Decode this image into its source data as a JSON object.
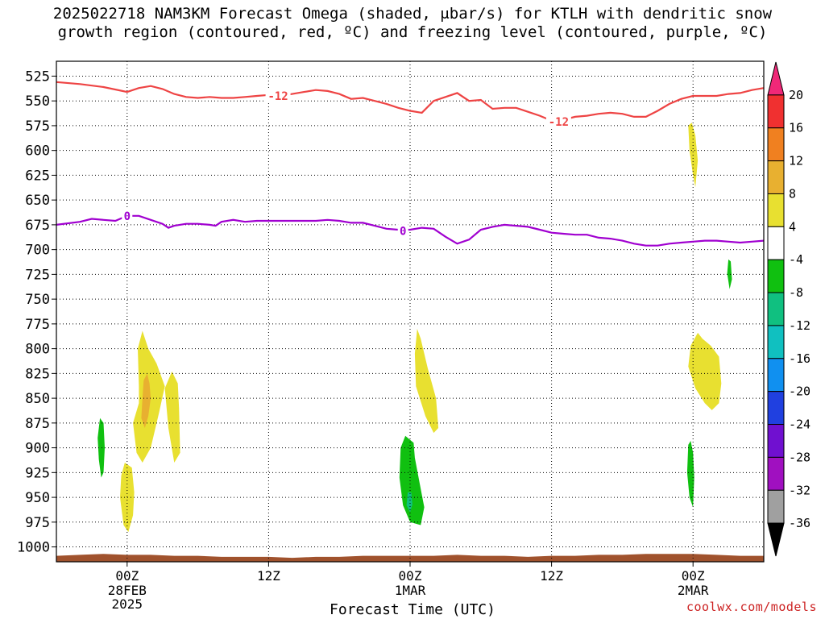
{
  "title": {
    "line1": "2025022718 NAM3KM Forecast Omega (shaded, μbar/s) for KTLH with dendritic snow",
    "line2": "growth region (contoured, red, ºC) and freezing level (contoured, purple, ºC)"
  },
  "credit": "coolwx.com/models",
  "colors": {
    "dgz_contour": "#ee4444",
    "freezing_contour": "#a000d0",
    "ground": "#a0522d",
    "grid": "#000000"
  },
  "chart_data": {
    "type": "heatmap",
    "xlabel": "Forecast Time (UTC)",
    "ylabel": "",
    "y_axis": {
      "scale": "pressure (hPa), inverted",
      "range": [
        1015,
        510
      ],
      "ticks": [
        525,
        550,
        575,
        600,
        625,
        650,
        675,
        700,
        725,
        750,
        775,
        800,
        825,
        850,
        875,
        900,
        925,
        950,
        975,
        1000
      ]
    },
    "x_axis": {
      "range_hours": [
        -6,
        54
      ],
      "ticks": [
        {
          "hour": 0,
          "label": "00Z",
          "sub1": "28FEB",
          "sub2": "2025"
        },
        {
          "hour": 12,
          "label": "12Z",
          "sub1": "",
          "sub2": ""
        },
        {
          "hour": 24,
          "label": "00Z",
          "sub1": "1MAR",
          "sub2": ""
        },
        {
          "hour": 36,
          "label": "12Z",
          "sub1": "",
          "sub2": ""
        },
        {
          "hour": 48,
          "label": "00Z",
          "sub1": "2MAR",
          "sub2": ""
        }
      ]
    },
    "grid": "dotted",
    "legend": {
      "placement": "right",
      "labels": [
        "20",
        "16",
        "12",
        "8",
        "4",
        "-4",
        "-8",
        "-12",
        "-16",
        "-20",
        "-24",
        "-28",
        "-32",
        "-36"
      ],
      "colors": [
        "#f02878",
        "#f03030",
        "#f08020",
        "#e8b030",
        "#e8e030",
        "#ffffff",
        "#10c010",
        "#10c080",
        "#10c0c0",
        "#1090f0",
        "#2040e0",
        "#7010d0",
        "#a010c0",
        "#a0a0a0",
        "#000000"
      ]
    },
    "contours": [
      {
        "label": "-12",
        "color": "#ee4444",
        "label_positions": [
          [
            12.8,
            545
          ],
          [
            36.6,
            571
          ]
        ],
        "points": [
          [
            -6,
            531
          ],
          [
            -4,
            533
          ],
          [
            -2,
            536
          ],
          [
            0,
            541
          ],
          [
            1,
            537
          ],
          [
            2,
            535
          ],
          [
            3,
            538
          ],
          [
            4,
            543
          ],
          [
            5,
            546
          ],
          [
            6,
            547
          ],
          [
            7,
            546
          ],
          [
            8,
            547
          ],
          [
            9,
            547
          ],
          [
            10,
            546
          ],
          [
            11,
            545
          ],
          [
            12,
            544
          ],
          [
            13,
            545
          ],
          [
            14,
            543
          ],
          [
            15,
            541
          ],
          [
            16,
            539
          ],
          [
            17,
            540
          ],
          [
            18,
            543
          ],
          [
            19,
            548
          ],
          [
            20,
            547
          ],
          [
            21,
            550
          ],
          [
            22,
            553
          ],
          [
            23,
            557
          ],
          [
            24,
            560
          ],
          [
            25,
            562
          ],
          [
            26,
            550
          ],
          [
            27,
            546
          ],
          [
            28,
            542
          ],
          [
            29,
            550
          ],
          [
            30,
            549
          ],
          [
            31,
            558
          ],
          [
            32,
            557
          ],
          [
            33,
            557
          ],
          [
            34,
            561
          ],
          [
            35,
            565
          ],
          [
            36,
            570
          ],
          [
            37,
            569
          ],
          [
            38,
            566
          ],
          [
            39,
            565
          ],
          [
            40,
            563
          ],
          [
            41,
            562
          ],
          [
            42,
            563
          ],
          [
            43,
            566
          ],
          [
            44,
            566
          ],
          [
            45,
            560
          ],
          [
            46,
            553
          ],
          [
            47,
            548
          ],
          [
            48,
            545
          ],
          [
            49,
            545
          ],
          [
            50,
            545
          ],
          [
            51,
            543
          ],
          [
            52,
            542
          ],
          [
            53,
            539
          ],
          [
            54,
            537
          ]
        ]
      },
      {
        "label": "0",
        "color": "#a000d0",
        "label_positions": [
          [
            0,
            666
          ],
          [
            23.4,
            681
          ]
        ],
        "points": [
          [
            -6,
            675
          ],
          [
            -4,
            672
          ],
          [
            -3,
            669
          ],
          [
            -2,
            670
          ],
          [
            -1,
            671
          ],
          [
            0,
            666
          ],
          [
            1,
            666
          ],
          [
            2,
            670
          ],
          [
            3,
            674
          ],
          [
            3.5,
            678
          ],
          [
            4,
            676
          ],
          [
            5,
            674
          ],
          [
            6,
            674
          ],
          [
            7,
            675
          ],
          [
            7.5,
            676
          ],
          [
            8,
            672
          ],
          [
            9,
            670
          ],
          [
            10,
            672
          ],
          [
            11,
            671
          ],
          [
            12,
            671
          ],
          [
            14,
            671
          ],
          [
            16,
            671
          ],
          [
            17,
            670
          ],
          [
            18,
            671
          ],
          [
            19,
            673
          ],
          [
            20,
            673
          ],
          [
            21,
            676
          ],
          [
            22,
            679
          ],
          [
            23,
            680
          ],
          [
            24,
            680
          ],
          [
            25,
            678
          ],
          [
            26,
            679
          ],
          [
            27,
            687
          ],
          [
            28,
            694
          ],
          [
            29,
            690
          ],
          [
            30,
            680
          ],
          [
            31,
            677
          ],
          [
            32,
            675
          ],
          [
            33,
            676
          ],
          [
            34,
            677
          ],
          [
            35,
            680
          ],
          [
            36,
            683
          ],
          [
            37,
            684
          ],
          [
            38,
            685
          ],
          [
            39,
            685
          ],
          [
            40,
            688
          ],
          [
            41,
            689
          ],
          [
            42,
            691
          ],
          [
            43,
            694
          ],
          [
            44,
            696
          ],
          [
            45,
            696
          ],
          [
            46,
            694
          ],
          [
            47,
            693
          ],
          [
            48,
            692
          ],
          [
            49,
            691
          ],
          [
            50,
            691
          ],
          [
            51,
            692
          ],
          [
            52,
            693
          ],
          [
            53,
            692
          ],
          [
            54,
            691
          ]
        ]
      }
    ],
    "shaded_regions": [
      {
        "level": "4 to 8",
        "color": "#e8e030",
        "points": [
          [
            1.0,
            838
          ],
          [
            1.0,
            855
          ],
          [
            0.5,
            875
          ],
          [
            0.8,
            905
          ],
          [
            1.3,
            915
          ],
          [
            2.0,
            900
          ],
          [
            2.7,
            865
          ],
          [
            3.2,
            838
          ],
          [
            2.5,
            815
          ],
          [
            1.8,
            800
          ],
          [
            1.3,
            782
          ],
          [
            0.9,
            800
          ]
        ]
      },
      {
        "level": "8 to 12",
        "color": "#e8b030",
        "points": [
          [
            1.4,
            832
          ],
          [
            1.3,
            850
          ],
          [
            1.2,
            870
          ],
          [
            1.5,
            880
          ],
          [
            1.8,
            868
          ],
          [
            2.0,
            850
          ],
          [
            1.9,
            835
          ],
          [
            1.7,
            825
          ]
        ]
      },
      {
        "level": "4 to 8",
        "color": "#e8e030",
        "points": [
          [
            3.2,
            840
          ],
          [
            3.5,
            880
          ],
          [
            4.0,
            915
          ],
          [
            4.5,
            905
          ],
          [
            4.4,
            860
          ],
          [
            4.3,
            835
          ],
          [
            3.8,
            823
          ]
        ]
      },
      {
        "level": "4 to 8",
        "color": "#e8e030",
        "points": [
          [
            -0.5,
            928
          ],
          [
            -0.6,
            950
          ],
          [
            -0.3,
            978
          ],
          [
            0.1,
            985
          ],
          [
            0.5,
            968
          ],
          [
            0.6,
            945
          ],
          [
            0.4,
            920
          ],
          [
            -0.2,
            915
          ]
        ]
      },
      {
        "level": "-8 to -4",
        "color": "#10c010",
        "points": [
          [
            -2.5,
            890
          ],
          [
            -2.4,
            912
          ],
          [
            -2.2,
            930
          ],
          [
            -2.0,
            925
          ],
          [
            -1.9,
            900
          ],
          [
            -2.0,
            875
          ],
          [
            -2.3,
            870
          ]
        ]
      },
      {
        "level": "4 to 8",
        "color": "#e8e030",
        "points": [
          [
            24.4,
            805
          ],
          [
            24.5,
            838
          ],
          [
            25.3,
            868
          ],
          [
            26.0,
            885
          ],
          [
            26.4,
            880
          ],
          [
            26.2,
            850
          ],
          [
            25.5,
            820
          ],
          [
            24.9,
            790
          ],
          [
            24.6,
            780
          ]
        ]
      },
      {
        "level": "-8 to -4",
        "color": "#10c010",
        "points": [
          [
            23.2,
            900
          ],
          [
            23.1,
            930
          ],
          [
            23.4,
            958
          ],
          [
            24.0,
            975
          ],
          [
            24.9,
            978
          ],
          [
            25.2,
            960
          ],
          [
            24.8,
            935
          ],
          [
            24.4,
            910
          ],
          [
            24.3,
            895
          ],
          [
            23.6,
            888
          ]
        ]
      },
      {
        "level": "-12 to -8",
        "color": "#10c080",
        "points": [
          [
            23.8,
            945
          ],
          [
            23.7,
            958
          ],
          [
            24.0,
            965
          ],
          [
            24.2,
            957
          ],
          [
            24.1,
            945
          ]
        ]
      },
      {
        "level": "4 to 8",
        "color": "#e8e030",
        "points": [
          [
            47.8,
            797
          ],
          [
            47.6,
            818
          ],
          [
            48.2,
            840
          ],
          [
            49.0,
            855
          ],
          [
            49.6,
            862
          ],
          [
            50.2,
            855
          ],
          [
            50.4,
            835
          ],
          [
            50.2,
            808
          ],
          [
            49.5,
            797
          ],
          [
            48.8,
            790
          ],
          [
            48.4,
            784
          ]
        ]
      },
      {
        "level": "4 to 8",
        "color": "#e8e030",
        "points": [
          [
            47.6,
            575
          ],
          [
            47.7,
            600
          ],
          [
            48.0,
            625
          ],
          [
            48.2,
            637
          ],
          [
            48.4,
            610
          ],
          [
            48.2,
            585
          ],
          [
            47.9,
            572
          ]
        ]
      },
      {
        "level": "-8 to -4",
        "color": "#10c010",
        "points": [
          [
            51.0,
            710
          ],
          [
            50.9,
            724
          ],
          [
            51.1,
            740
          ],
          [
            51.3,
            730
          ],
          [
            51.2,
            712
          ]
        ]
      },
      {
        "level": "-8 to -4",
        "color": "#10c010",
        "points": [
          [
            47.6,
            897
          ],
          [
            47.5,
            925
          ],
          [
            47.7,
            950
          ],
          [
            48.0,
            960
          ],
          [
            48.1,
            930
          ],
          [
            48.0,
            905
          ],
          [
            47.8,
            893
          ]
        ]
      }
    ],
    "ground_surface": [
      [
        -6,
        1009
      ],
      [
        -4,
        1008
      ],
      [
        -2,
        1007
      ],
      [
        0,
        1008
      ],
      [
        2,
        1008
      ],
      [
        4,
        1009
      ],
      [
        6,
        1009
      ],
      [
        8,
        1010
      ],
      [
        10,
        1010
      ],
      [
        12,
        1010
      ],
      [
        14,
        1011
      ],
      [
        16,
        1010
      ],
      [
        18,
        1010
      ],
      [
        20,
        1009
      ],
      [
        22,
        1009
      ],
      [
        24,
        1009
      ],
      [
        26,
        1009
      ],
      [
        28,
        1008
      ],
      [
        30,
        1009
      ],
      [
        32,
        1009
      ],
      [
        34,
        1010
      ],
      [
        36,
        1009
      ],
      [
        38,
        1009
      ],
      [
        40,
        1008
      ],
      [
        42,
        1008
      ],
      [
        44,
        1007
      ],
      [
        46,
        1007
      ],
      [
        48,
        1007
      ],
      [
        50,
        1008
      ],
      [
        52,
        1009
      ],
      [
        54,
        1009
      ]
    ]
  }
}
